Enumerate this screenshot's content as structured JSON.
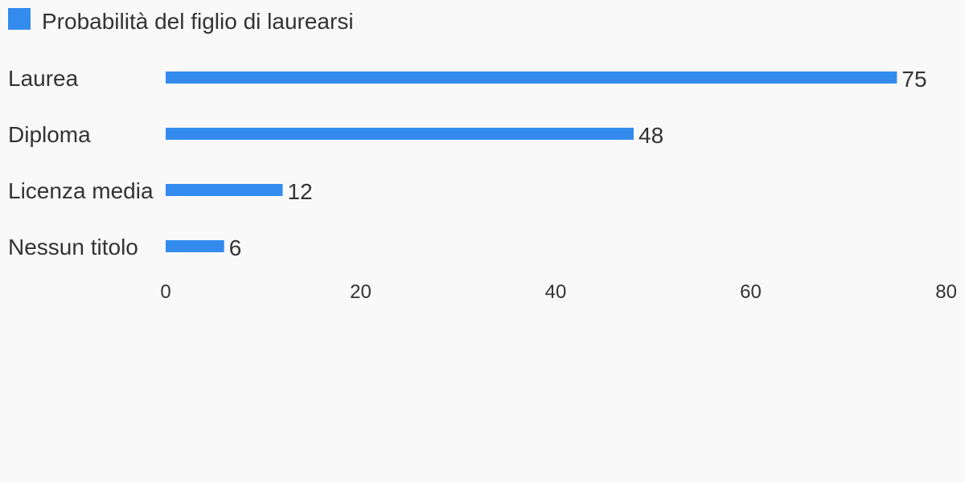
{
  "chart_data": {
    "type": "bar",
    "orientation": "horizontal",
    "categories": [
      "Laurea",
      "Diploma",
      "Licenza media",
      "Nessun titolo"
    ],
    "series": [
      {
        "name": "Probabilità del figlio di laurearsi",
        "values": [
          75,
          48,
          12,
          6
        ],
        "color": "#338ced"
      }
    ],
    "data_labels": [
      "75",
      "48",
      "12",
      "6"
    ],
    "x_ticks": [
      "0",
      "20",
      "40",
      "60",
      "80"
    ],
    "xlim": [
      0,
      80
    ],
    "grid": false,
    "legend_position": "top-left"
  }
}
